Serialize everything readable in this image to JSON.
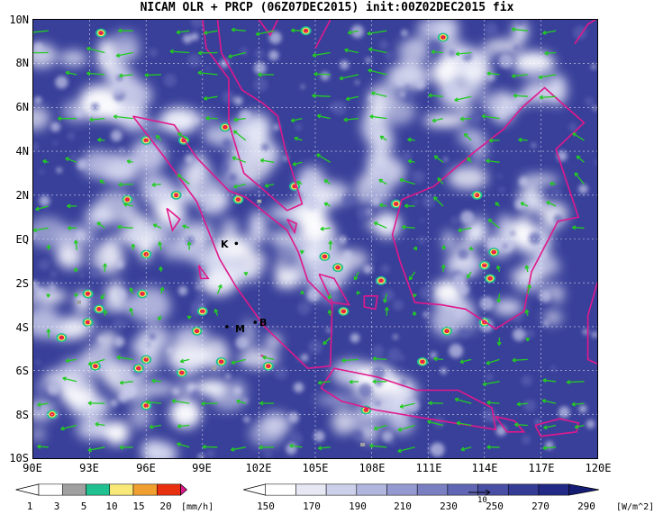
{
  "title": "NICAM OLR + PRCP (06Z07DEC2015) init:00Z02DEC2015 fix",
  "y_labels": [
    "10N",
    "8N",
    "6N",
    "4N",
    "2N",
    "EQ",
    "2S",
    "4S",
    "6S",
    "8S",
    "10S"
  ],
  "x_labels": [
    "90E",
    "93E",
    "96E",
    "99E",
    "102E",
    "105E",
    "108E",
    "111E",
    "114E",
    "117E",
    "120E"
  ],
  "stations": [
    {
      "name": "K",
      "lon": 100.8,
      "lat": -0.2
    },
    {
      "name": "M",
      "lon": 100.3,
      "lat": -4.0
    },
    {
      "name": "B",
      "lon": 101.8,
      "lat": -3.8
    }
  ],
  "precip_bar": {
    "ticks": [
      "1",
      "3",
      "5",
      "10",
      "15",
      "20"
    ],
    "unit": "[mm/h]",
    "colors": [
      "#a0a0a0",
      "#20c090",
      "#f8e878",
      "#f0a030",
      "#e83010",
      "#e0188c"
    ]
  },
  "olr_bar": {
    "ticks": [
      "150",
      "170",
      "190",
      "210",
      "230",
      "250",
      "270",
      "290"
    ],
    "unit": "[W/m^2]",
    "vector_label": "10",
    "colors": [
      "#ffffff",
      "#e6e8f4",
      "#ccd0ea",
      "#b0b6de",
      "#9499d0",
      "#7a7fc2",
      "#6066b4",
      "#4a4fa6",
      "#353c96",
      "#232a86",
      "#151c74"
    ]
  },
  "colors": {
    "coastline": "#e0188c",
    "wind": "#22cc22",
    "background": "#39409a"
  }
}
